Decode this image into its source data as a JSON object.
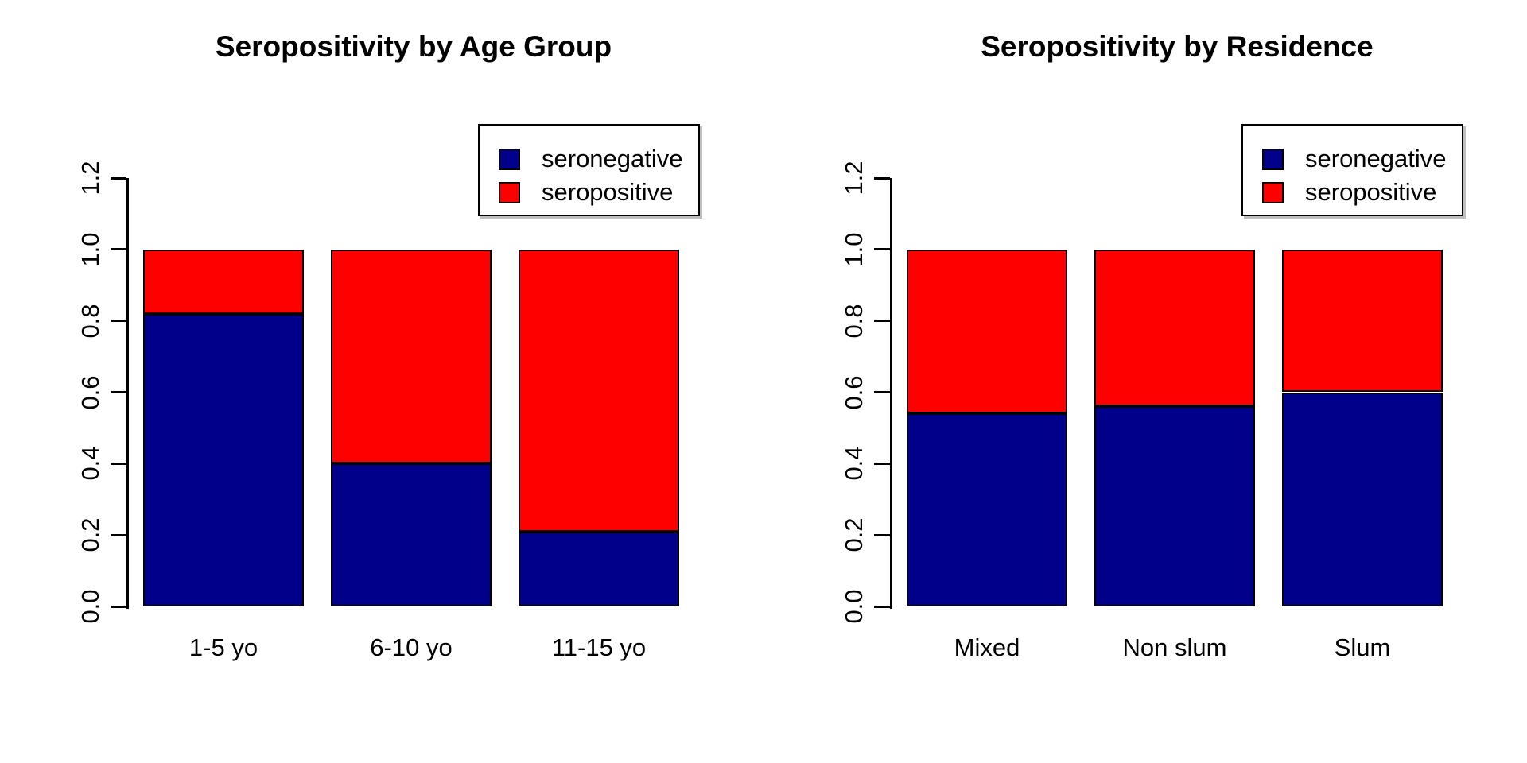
{
  "figure": {
    "background": "#ffffff",
    "text_color": "#000000"
  },
  "colors": {
    "seronegative": "#00008B",
    "seropositive": "#FF0000",
    "axis": "#000000",
    "legend_border": "#000000"
  },
  "legend": {
    "items": [
      {
        "label": "seronegative",
        "color": "#00008B"
      },
      {
        "label": "seropositive",
        "color": "#FF0000"
      }
    ],
    "position": "top-right"
  },
  "chart_data": [
    {
      "type": "bar",
      "stacked": true,
      "title": "Seropositivity by Age Group",
      "categories": [
        "1-5 yo",
        "6-10 yo",
        "11-15 yo"
      ],
      "series": [
        {
          "name": "seronegative",
          "color": "#00008B",
          "values": [
            0.82,
            0.4,
            0.21
          ]
        },
        {
          "name": "seropositive",
          "color": "#FF0000",
          "values": [
            0.18,
            0.6,
            0.79
          ]
        }
      ],
      "xlabel": "",
      "ylabel": "",
      "ylim": [
        0,
        1.2
      ],
      "yticks": [
        "0.0",
        "0.2",
        "0.4",
        "0.6",
        "0.8",
        "1.0",
        "1.2"
      ],
      "bar_total": 1.0,
      "grid": false,
      "legend_position": "top-right"
    },
    {
      "type": "bar",
      "stacked": true,
      "title": "Seropositivity by Residence",
      "categories": [
        "Mixed",
        "Non slum",
        "Slum"
      ],
      "series": [
        {
          "name": "seronegative",
          "color": "#00008B",
          "values": [
            0.54,
            0.56,
            0.6
          ]
        },
        {
          "name": "seropositive",
          "color": "#FF0000",
          "values": [
            0.46,
            0.44,
            0.4
          ]
        }
      ],
      "xlabel": "",
      "ylabel": "",
      "ylim": [
        0,
        1.2
      ],
      "yticks": [
        "0.0",
        "0.2",
        "0.4",
        "0.6",
        "0.8",
        "1.0",
        "1.2"
      ],
      "bar_total": 1.0,
      "grid": false,
      "legend_position": "top-right"
    }
  ]
}
